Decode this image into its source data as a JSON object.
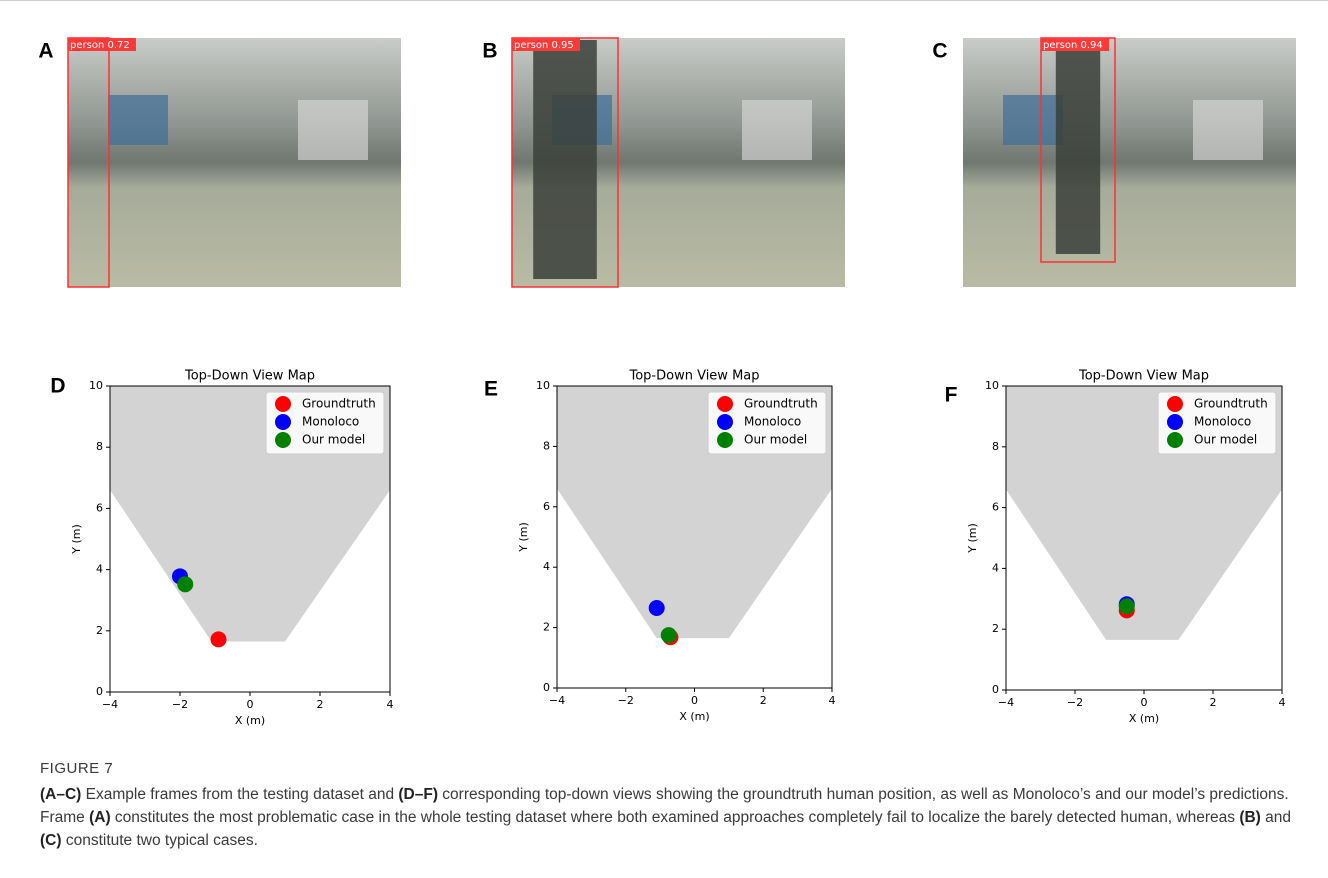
{
  "panels": [
    {
      "letter": "A",
      "detection": "person 0.72"
    },
    {
      "letter": "B",
      "detection": "person 0.95"
    },
    {
      "letter": "C",
      "detection": "person 0.94"
    }
  ],
  "chart_data": [
    {
      "type": "scatter",
      "letter": "D",
      "title": "Top-Down View Map",
      "xlabel": "X (m)",
      "ylabel": "Y (m)",
      "xlim": [
        -4,
        4
      ],
      "ylim": [
        0,
        10
      ],
      "xticks": [
        {
          "value": -4,
          "label": "−4"
        },
        {
          "value": -2,
          "label": "−2"
        },
        0,
        2,
        4
      ],
      "yticks": [
        0,
        2,
        4,
        6,
        8,
        10
      ],
      "region": {
        "color": "#d3d3d3",
        "x": [
          -4,
          -1.1,
          1,
          4,
          4,
          -4
        ],
        "y": [
          6.6,
          1.65,
          1.65,
          6.6,
          10,
          10
        ]
      },
      "legend": "upper right",
      "series": [
        {
          "name": "Groundtruth",
          "color": "#ff0000",
          "x": [
            -0.9
          ],
          "values": [
            1.72
          ]
        },
        {
          "name": "Monoloco",
          "color": "#0000ff",
          "x": [
            -2.0
          ],
          "values": [
            3.78
          ]
        },
        {
          "name": "Our model",
          "color": "#008000",
          "x": [
            -1.85
          ],
          "values": [
            3.52
          ]
        }
      ]
    },
    {
      "type": "scatter",
      "letter": "E",
      "title": "Top-Down View Map",
      "xlabel": "X (m)",
      "ylabel": "Y (m)",
      "xlim": [
        -4,
        4
      ],
      "ylim": [
        0,
        10
      ],
      "xticks": [
        {
          "value": -4,
          "label": "−4"
        },
        {
          "value": -2,
          "label": "−2"
        },
        0,
        2,
        4
      ],
      "yticks": [
        0,
        2,
        4,
        6,
        8,
        10
      ],
      "region": {
        "color": "#d3d3d3",
        "x": [
          -4,
          -1.1,
          1,
          4,
          4,
          -4
        ],
        "y": [
          6.6,
          1.65,
          1.65,
          6.6,
          10,
          10
        ]
      },
      "legend": "upper right",
      "series": [
        {
          "name": "Groundtruth",
          "color": "#ff0000",
          "x": [
            -0.7
          ],
          "values": [
            1.68
          ]
        },
        {
          "name": "Monoloco",
          "color": "#0000ff",
          "x": [
            -1.1
          ],
          "values": [
            2.65
          ]
        },
        {
          "name": "Our model",
          "color": "#008000",
          "x": [
            -0.75
          ],
          "values": [
            1.75
          ]
        }
      ]
    },
    {
      "type": "scatter",
      "letter": "F",
      "title": "Top-Down View Map",
      "xlabel": "X (m)",
      "ylabel": "Y (m)",
      "xlim": [
        -4,
        4
      ],
      "ylim": [
        0,
        10
      ],
      "xticks": [
        {
          "value": -4,
          "label": "−4"
        },
        {
          "value": -2,
          "label": "−2"
        },
        0,
        2,
        4
      ],
      "yticks": [
        0,
        2,
        4,
        6,
        8,
        10
      ],
      "region": {
        "color": "#d3d3d3",
        "x": [
          -4,
          -1.1,
          1,
          4,
          4,
          -4
        ],
        "y": [
          6.6,
          1.65,
          1.65,
          6.6,
          10,
          10
        ]
      },
      "legend": "upper right",
      "series": [
        {
          "name": "Groundtruth",
          "color": "#ff0000",
          "x": [
            -0.5
          ],
          "values": [
            2.62
          ]
        },
        {
          "name": "Monoloco",
          "color": "#0000ff",
          "x": [
            -0.5
          ],
          "values": [
            2.82
          ]
        },
        {
          "name": "Our model",
          "color": "#008000",
          "x": [
            -0.5
          ],
          "values": [
            2.75
          ]
        }
      ]
    }
  ],
  "figure_label": "FIGURE 7",
  "caption": [
    {
      "text": "(A–C)",
      "bold": true
    },
    {
      "text": " Example frames from the testing dataset and ",
      "bold": false
    },
    {
      "text": "(D–F)",
      "bold": true
    },
    {
      "text": " corresponding top-down views showing the groundtruth human position, as well as Monoloco’s and our model’s predictions. Frame ",
      "bold": false
    },
    {
      "text": "(A)",
      "bold": true
    },
    {
      "text": " constitutes the most problematic case in the whole testing dataset where both examined approaches completely fail to localize the barely detected human, whereas ",
      "bold": false
    },
    {
      "text": "(B)",
      "bold": true
    },
    {
      "text": " and ",
      "bold": false
    },
    {
      "text": "(C)",
      "bold": true
    },
    {
      "text": " constitute two typical cases.",
      "bold": false
    }
  ]
}
